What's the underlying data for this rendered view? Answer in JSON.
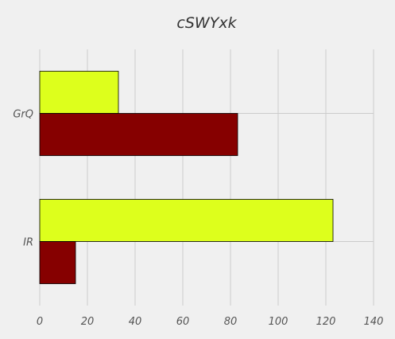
{
  "chart_data": {
    "type": "bar",
    "orientation": "horizontal",
    "title": "cSWYxk",
    "categories": [
      "IR",
      "GrQ"
    ],
    "series": [
      {
        "color": "#ddff1c",
        "values": [
          123,
          33
        ]
      },
      {
        "color": "#860000",
        "values": [
          15,
          83
        ]
      }
    ],
    "xlim": [
      0,
      140
    ],
    "xticks": [
      0,
      20,
      40,
      60,
      80,
      100,
      120,
      140
    ],
    "grid": true,
    "legend": "none"
  }
}
